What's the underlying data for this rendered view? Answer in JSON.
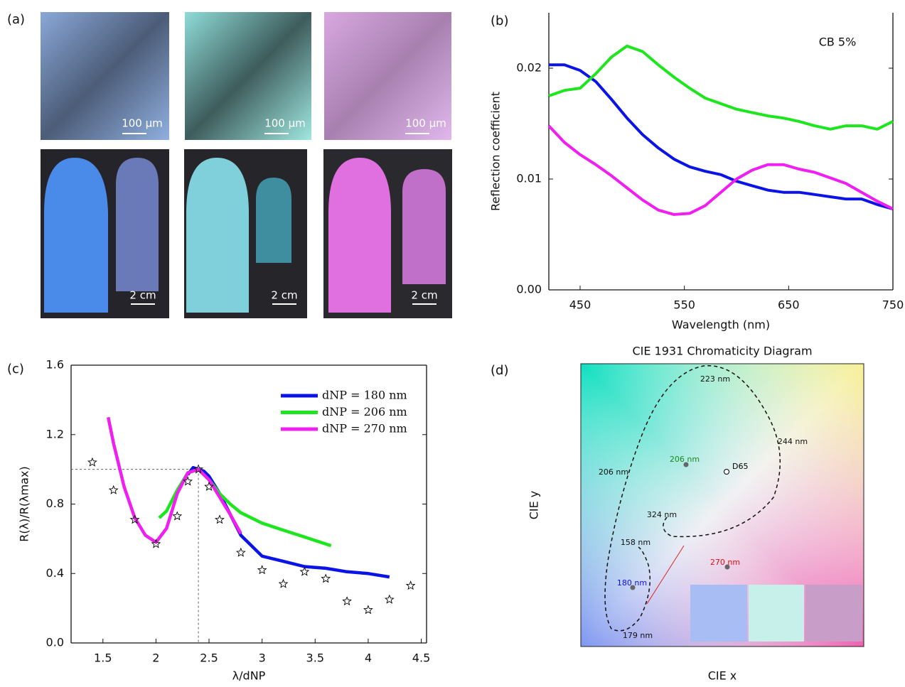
{
  "photos": {
    "label": "(a)",
    "scale_bars": [
      "100 µm",
      "100 µm",
      "100 µm",
      "2 cm",
      "2 cm",
      "2 cm"
    ]
  },
  "chart_data": [
    {
      "type": "line",
      "label": "(b)",
      "xlabel": "Wavelength (nm)",
      "ylabel": "Reflection coefficient",
      "annotation": "CB 5%",
      "xlim": [
        420,
        750
      ],
      "ylim": [
        0,
        0.025
      ],
      "xticks": [
        450,
        550,
        650,
        750
      ],
      "yticks": [
        {
          "value": 0,
          "label": "0.00"
        },
        0.01,
        0.02
      ],
      "x": [
        420,
        435,
        450,
        465,
        480,
        495,
        510,
        525,
        540,
        555,
        570,
        585,
        600,
        615,
        630,
        645,
        660,
        675,
        690,
        705,
        720,
        735,
        750
      ],
      "series": [
        {
          "color": "#0a14e6",
          "values": [
            0.0203,
            0.0203,
            0.0198,
            0.0188,
            0.0172,
            0.0155,
            0.014,
            0.0128,
            0.0118,
            0.0111,
            0.0107,
            0.0104,
            0.0098,
            0.0094,
            0.009,
            0.0088,
            0.0088,
            0.0086,
            0.0084,
            0.0082,
            0.0082,
            0.0077,
            0.0073
          ]
        },
        {
          "color": "#1ee61e",
          "values": [
            0.0175,
            0.018,
            0.0182,
            0.0195,
            0.021,
            0.022,
            0.0215,
            0.0203,
            0.0192,
            0.0182,
            0.0173,
            0.0168,
            0.0163,
            0.016,
            0.0157,
            0.0155,
            0.0152,
            0.0148,
            0.0145,
            0.0148,
            0.0148,
            0.0145,
            0.0152
          ]
        },
        {
          "color": "#f01ef0",
          "values": [
            0.0148,
            0.0133,
            0.0122,
            0.0113,
            0.0103,
            0.0092,
            0.0081,
            0.0072,
            0.0068,
            0.0069,
            0.0076,
            0.0088,
            0.01,
            0.0108,
            0.0113,
            0.0113,
            0.0109,
            0.0106,
            0.0101,
            0.0096,
            0.0088,
            0.008,
            0.0073
          ]
        }
      ]
    },
    {
      "type": "line",
      "label": "(c)",
      "xlabel": "λ/dNP",
      "ylabel": "R(λ)/R(λmax)",
      "legend": "upper right",
      "xlim": [
        1.2,
        4.55
      ],
      "ylim": [
        0,
        1.6
      ],
      "xticks": [
        1.5,
        2,
        2.5,
        3,
        3.5,
        4,
        4.5
      ],
      "yticks": [
        {
          "value": 0,
          "label": "0.0"
        },
        0.4,
        0.8,
        1.2,
        1.6
      ],
      "reference": {
        "x": 2.4,
        "y": 1
      },
      "series": [
        {
          "name": "dNP = 180 nm",
          "color": "#0a14e6",
          "x": [
            2.3,
            2.35,
            2.4,
            2.45,
            2.5,
            2.6,
            2.7,
            2.8,
            3.0,
            3.2,
            3.4,
            3.6,
            3.8,
            4.0,
            4.2
          ],
          "values": [
            0.97,
            1.01,
            1.0,
            0.99,
            0.96,
            0.86,
            0.74,
            0.62,
            0.5,
            0.47,
            0.44,
            0.43,
            0.41,
            0.4,
            0.38
          ]
        },
        {
          "name": "dNP = 206 nm",
          "color": "#1ee61e",
          "x": [
            2.03,
            2.1,
            2.2,
            2.3,
            2.4,
            2.5,
            2.6,
            2.7,
            2.8,
            3.0,
            3.2,
            3.4,
            3.65
          ],
          "values": [
            0.72,
            0.76,
            0.88,
            0.98,
            1.0,
            0.94,
            0.86,
            0.8,
            0.75,
            0.69,
            0.65,
            0.61,
            0.56
          ]
        },
        {
          "name": "dNP = 270 nm",
          "color": "#f01ef0",
          "x": [
            1.55,
            1.6,
            1.7,
            1.8,
            1.9,
            2.0,
            2.1,
            2.2,
            2.3,
            2.4,
            2.5,
            2.6,
            2.7,
            2.8
          ],
          "values": [
            1.3,
            1.15,
            0.9,
            0.72,
            0.62,
            0.58,
            0.66,
            0.86,
            0.98,
            1.0,
            0.94,
            0.84,
            0.74,
            0.63
          ]
        },
        {
          "marker": "star",
          "color": "#000000",
          "x": [
            1.4,
            1.6,
            1.8,
            2.0,
            2.2,
            2.3,
            2.4,
            2.5,
            2.6,
            2.8,
            3.0,
            3.2,
            3.4,
            3.6,
            3.8,
            4.0,
            4.2,
            4.4
          ],
          "values": [
            1.04,
            0.88,
            0.71,
            0.57,
            0.73,
            0.93,
            1.0,
            0.9,
            0.71,
            0.52,
            0.42,
            0.34,
            0.41,
            0.37,
            0.24,
            0.19,
            0.25,
            0.33
          ]
        }
      ]
    }
  ],
  "chromaticity": {
    "label": "(d)",
    "title": "CIE 1931 Chromaticity Diagram",
    "xlabel": "CIE x",
    "ylabel": "CIE y",
    "curve_labels": [
      "223 nm",
      "244 nm",
      "206 nm",
      "324 nm",
      "158 nm",
      "179 nm"
    ],
    "points": [
      {
        "label": "206 nm",
        "color": "#1a8a1a"
      },
      {
        "label": "D65",
        "color": "#000000"
      },
      {
        "label": "270 nm",
        "color": "#e01010"
      },
      {
        "label": "180 nm",
        "color": "#1010e0"
      }
    ],
    "swatches": [
      "#a9bdf5",
      "#c8f0ea",
      "#c89ec8"
    ]
  }
}
